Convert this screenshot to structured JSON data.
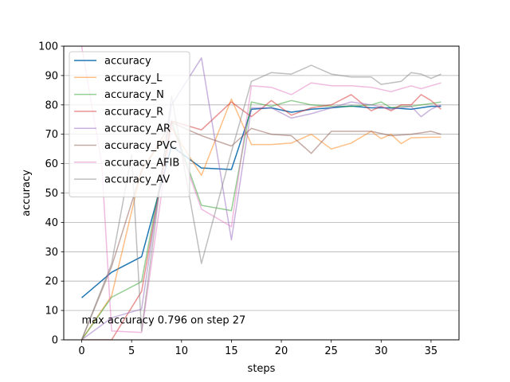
{
  "chart_data": {
    "type": "line",
    "xlabel": "steps",
    "ylabel": "accuracy",
    "xlim": [
      -1.8,
      37.8
    ],
    "ylim": [
      0,
      100
    ],
    "xticks": [
      0,
      5,
      10,
      15,
      20,
      25,
      30,
      35
    ],
    "yticks": [
      0,
      10,
      20,
      30,
      40,
      50,
      60,
      70,
      80,
      90,
      100
    ],
    "grid": "horizontal",
    "legend_position": "upper-left",
    "annotation": "max accuracy 0.796 on step 27",
    "series": [
      {
        "name": "accuracy",
        "color": "#1f77b4",
        "opacity": 1.0,
        "x": [
          0,
          3,
          6,
          9,
          12,
          15,
          17,
          19,
          21,
          23,
          25,
          27,
          29,
          31,
          33,
          35,
          36
        ],
        "y": [
          14.3,
          23.0,
          28.3,
          66.0,
          58.5,
          58.0,
          78.5,
          79.0,
          77.5,
          78.5,
          79.0,
          79.6,
          79.0,
          79.0,
          78.5,
          79.5,
          79.5
        ]
      },
      {
        "name": "accuracy_L",
        "color": "#ff7f0e",
        "opacity": 0.5,
        "x": [
          0,
          3,
          6,
          9,
          12,
          15,
          17,
          19,
          21,
          23,
          25,
          27,
          29,
          30,
          31,
          32,
          33,
          35,
          36
        ],
        "y": [
          0,
          15.0,
          58.0,
          72.0,
          56.0,
          82.0,
          66.5,
          66.5,
          67.0,
          70.0,
          65.0,
          67.0,
          71.0,
          68.5,
          70.0,
          66.8,
          68.8,
          69.0,
          69.0
        ]
      },
      {
        "name": "accuracy_N",
        "color": "#2ca02c",
        "opacity": 0.5,
        "x": [
          0,
          3,
          6,
          9,
          12,
          15,
          17,
          19,
          21,
          23,
          25,
          27,
          29,
          30,
          31,
          32,
          33,
          35,
          36
        ],
        "y": [
          0,
          14.5,
          19.8,
          74.5,
          45.8,
          44.0,
          81.0,
          79.5,
          81.5,
          80.0,
          79.5,
          79.5,
          80.0,
          81.0,
          79.0,
          79.5,
          79.5,
          80.5,
          81.0
        ]
      },
      {
        "name": "accuracy_R",
        "color": "#d62728",
        "opacity": 0.5,
        "x": [
          0,
          3,
          6,
          9,
          12,
          15,
          17,
          19,
          21,
          23,
          25,
          27,
          29,
          30,
          31,
          32,
          33,
          34,
          35,
          36
        ],
        "y": [
          0,
          0,
          16.5,
          74.5,
          71.5,
          81.0,
          76.0,
          81.5,
          76.5,
          79.0,
          80.0,
          83.5,
          78.0,
          79.5,
          78.0,
          80.0,
          80.0,
          83.5,
          81.5,
          78.5
        ]
      },
      {
        "name": "accuracy_AR",
        "color": "#9467bd",
        "opacity": 0.5,
        "x": [
          0,
          3,
          6,
          9,
          12,
          15,
          17,
          19,
          21,
          23,
          25,
          27,
          29,
          31,
          33,
          34,
          35,
          36
        ],
        "y": [
          0,
          7.5,
          10.5,
          80.0,
          96.0,
          34.0,
          79.0,
          79.0,
          75.5,
          77.0,
          79.0,
          81.0,
          80.0,
          78.5,
          79.5,
          76.0,
          78.5,
          80.0
        ]
      },
      {
        "name": "accuracy_PVC",
        "color": "#8c564b",
        "opacity": 0.5,
        "x": [
          0,
          3,
          6,
          9,
          12,
          15,
          17,
          19,
          21,
          23,
          25,
          27,
          29,
          31,
          33,
          35,
          36
        ],
        "y": [
          0,
          25.0,
          57.5,
          74.0,
          69.5,
          66.0,
          72.0,
          70.0,
          69.5,
          63.5,
          71.0,
          71.0,
          71.0,
          69.5,
          70.0,
          71.0,
          70.0
        ]
      },
      {
        "name": "accuracy_AFIB",
        "color": "#e377c2",
        "opacity": 0.5,
        "x": [
          0,
          2,
          3,
          6,
          9,
          12,
          15,
          17,
          19,
          21,
          23,
          25,
          27,
          29,
          31,
          33,
          34,
          35,
          36
        ],
        "y": [
          100,
          60.0,
          3.0,
          2.5,
          73.5,
          44.5,
          38.5,
          86.5,
          86.0,
          83.5,
          87.5,
          86.5,
          86.5,
          86.0,
          84.5,
          86.5,
          85.5,
          86.5,
          87.5
        ]
      },
      {
        "name": "accuracy_AV",
        "color": "#7f7f7f",
        "opacity": 0.5,
        "x": [
          0,
          3,
          5,
          6,
          9,
          12,
          15,
          17,
          19,
          21,
          23,
          25,
          27,
          29,
          30,
          31,
          32,
          33,
          34,
          35,
          36
        ],
        "y": [
          0,
          26.0,
          63.0,
          3.0,
          83.0,
          26.0,
          64.0,
          88.0,
          91.0,
          90.5,
          93.5,
          90.5,
          89.5,
          89.5,
          87.0,
          87.5,
          88.0,
          91.0,
          90.5,
          89.0,
          90.5
        ]
      }
    ]
  }
}
